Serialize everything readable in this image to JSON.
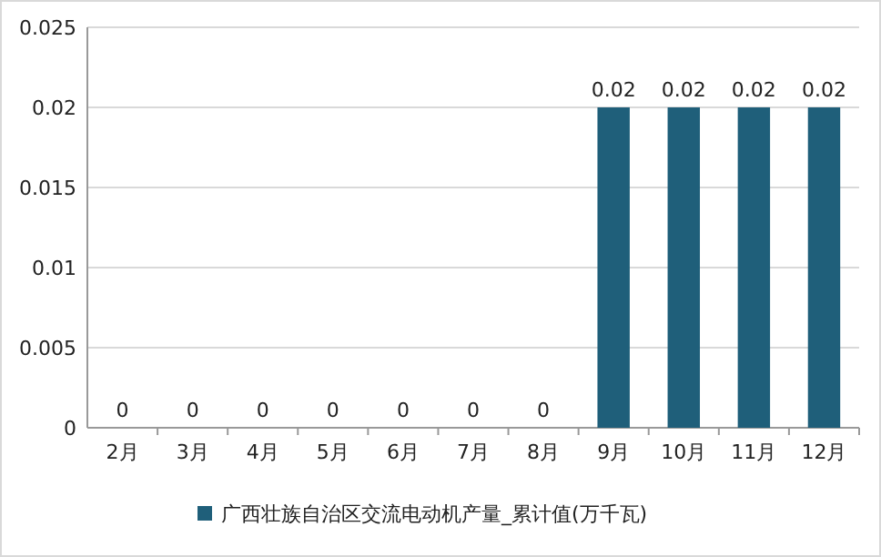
{
  "chart_data": {
    "type": "bar",
    "categories": [
      "2月",
      "3月",
      "4月",
      "5月",
      "6月",
      "7月",
      "8月",
      "9月",
      "10月",
      "11月",
      "12月"
    ],
    "series": [
      {
        "name": "广西壮族自治区交流电动机产量_累计值(万千瓦)",
        "color": "#1f5f7a",
        "values": [
          0,
          0,
          0,
          0,
          0,
          0,
          0,
          0.02,
          0.02,
          0.02,
          0.02
        ]
      }
    ],
    "ylim": [
      0,
      0.025
    ],
    "yticks": [
      0,
      0.005,
      0.01,
      0.015,
      0.02,
      0.025
    ],
    "grid": "y",
    "legend": "bottom",
    "data_labels": true
  }
}
